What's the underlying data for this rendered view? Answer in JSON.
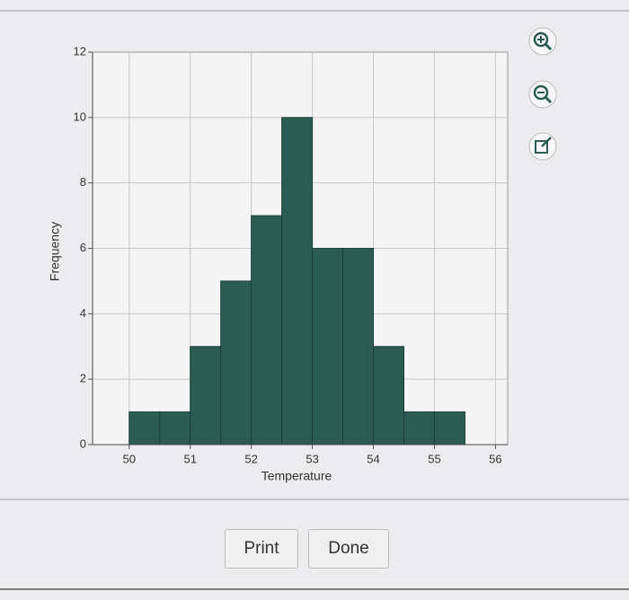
{
  "chart_data": {
    "type": "histogram",
    "xlabel": "Temperature",
    "ylabel": "Frequency",
    "bins": [
      50,
      50.5,
      51,
      51.5,
      52,
      52.5,
      53,
      53.5,
      54,
      54.5,
      55,
      55.5
    ],
    "counts": [
      1,
      1,
      3,
      5,
      7,
      10,
      6,
      6,
      3,
      1,
      1
    ],
    "color": "#2b5c53",
    "xlim": [
      49.4,
      56.2
    ],
    "xticks": [
      50,
      51,
      52,
      53,
      54,
      55,
      56
    ],
    "ylim": [
      0,
      12
    ],
    "yticks": [
      0,
      2,
      4,
      6,
      8,
      10,
      12
    ],
    "grid": true
  },
  "buttons": [
    "Print",
    "Done"
  ]
}
